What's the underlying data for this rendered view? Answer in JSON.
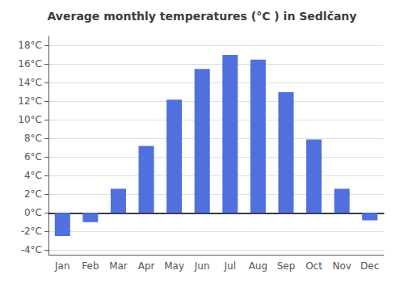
{
  "chart_data": {
    "type": "bar",
    "title": "Average monthly temperatures (°C ) in Sedlčany",
    "categories": [
      "Jan",
      "Feb",
      "Mar",
      "Apr",
      "May",
      "Jun",
      "Jul",
      "Aug",
      "Sep",
      "Oct",
      "Nov",
      "Dec"
    ],
    "values": [
      -2.5,
      -1.0,
      2.6,
      7.2,
      12.2,
      15.5,
      17.0,
      16.5,
      13.0,
      7.9,
      2.6,
      -0.8
    ],
    "ylim": [
      -4.5,
      19
    ],
    "yticks": [
      {
        "value": -4,
        "label": "-4°C"
      },
      {
        "value": -2,
        "label": "-2°C"
      },
      {
        "value": 0,
        "label": "0°C"
      },
      {
        "value": 2,
        "label": "2°C"
      },
      {
        "value": 4,
        "label": "4°C"
      },
      {
        "value": 6,
        "label": "6°C"
      },
      {
        "value": 8,
        "label": "8°C"
      },
      {
        "value": 10,
        "label": "10°C"
      },
      {
        "value": 12,
        "label": "12°C"
      },
      {
        "value": 14,
        "label": "14°C"
      },
      {
        "value": 16,
        "label": "16°C"
      },
      {
        "value": 18,
        "label": "18°C"
      }
    ],
    "grid": true
  }
}
